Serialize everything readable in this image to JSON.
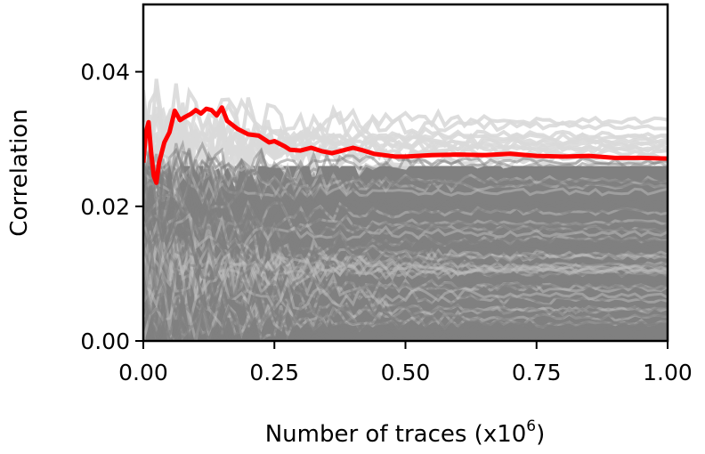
{
  "chart_data": {
    "type": "line",
    "title": "",
    "xlabel": "Number of traces (x10",
    "xlabel_superscript": "6",
    "xlabel_close": ")",
    "ylabel": "Correlation",
    "xlim": [
      0.0,
      1.0
    ],
    "ylim": [
      0.0,
      0.05
    ],
    "x_ticks": [
      "0.00",
      "0.25",
      "0.50",
      "0.75",
      "1.00"
    ],
    "y_ticks": [
      "0.00",
      "0.02",
      "0.04"
    ],
    "grid": false,
    "legend": "none",
    "colors": {
      "highlight": "#ff0000",
      "background_traces": "#808080",
      "light_traces": "#d9d9d9"
    },
    "series": [
      {
        "color": "#ff0000",
        "x": [
          0.0,
          0.005,
          0.01,
          0.015,
          0.02,
          0.025,
          0.03,
          0.04,
          0.05,
          0.06,
          0.07,
          0.08,
          0.09,
          0.1,
          0.11,
          0.12,
          0.13,
          0.14,
          0.15,
          0.16,
          0.18,
          0.2,
          0.22,
          0.24,
          0.25,
          0.27,
          0.28,
          0.3,
          0.32,
          0.34,
          0.36,
          0.38,
          0.4,
          0.42,
          0.44,
          0.46,
          0.48,
          0.5,
          0.55,
          0.6,
          0.65,
          0.7,
          0.75,
          0.8,
          0.85,
          0.9,
          0.95,
          1.0
        ],
        "values": [
          0.0265,
          0.031,
          0.0325,
          0.028,
          0.0245,
          0.0235,
          0.0265,
          0.0295,
          0.031,
          0.0342,
          0.0328,
          0.0333,
          0.0337,
          0.0343,
          0.0338,
          0.0345,
          0.0343,
          0.0335,
          0.0347,
          0.0327,
          0.0315,
          0.0307,
          0.0305,
          0.0295,
          0.0297,
          0.0289,
          0.0284,
          0.0283,
          0.0287,
          0.0282,
          0.0279,
          0.0283,
          0.0287,
          0.0283,
          0.0278,
          0.0276,
          0.0274,
          0.0274,
          0.0276,
          0.0277,
          0.0276,
          0.0278,
          0.0275,
          0.0274,
          0.0275,
          0.0272,
          0.0272,
          0.0271
        ]
      }
    ]
  }
}
